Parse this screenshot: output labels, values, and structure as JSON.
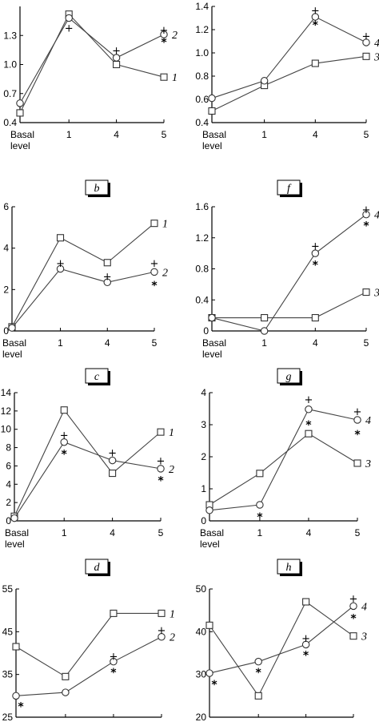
{
  "x_tick_labels": [
    "Basal\nlevel",
    "1",
    "4",
    "5"
  ],
  "x_tick_labels_lines": [
    [
      "Basal",
      "level"
    ],
    [
      "1"
    ],
    [
      "4"
    ],
    [
      "5"
    ]
  ],
  "panel_labels": {
    "b": "b",
    "f": "f",
    "c": "c",
    "g": "g",
    "d": "d",
    "h": "h"
  },
  "chart_data": [
    {
      "type": "line",
      "ylim": [
        0.4,
        1.6
      ],
      "yticks": [
        "0.4",
        "0.7",
        "1.0",
        "1.3"
      ],
      "show_x_labels": true,
      "series": [
        {
          "name": "1",
          "marker": "square",
          "values": [
            0.5,
            1.52,
            1.0,
            0.87
          ]
        },
        {
          "name": "2",
          "marker": "circle",
          "values": [
            0.6,
            1.48,
            1.07,
            1.31
          ]
        }
      ],
      "annotations": [
        {
          "text": "+",
          "x": 1,
          "y": 1.38
        },
        {
          "text": "+",
          "x": 2,
          "y": 1.15
        },
        {
          "text": "+",
          "x": 3,
          "y": 1.36
        },
        {
          "text": "*",
          "x": 3,
          "y": 1.23
        }
      ]
    },
    {
      "type": "line",
      "ylim": [
        0.4,
        1.4
      ],
      "yticks": [
        "0.4",
        "0.6",
        "0.8",
        "1.0",
        "1.2",
        "1.4"
      ],
      "show_x_labels": true,
      "series": [
        {
          "name": "3",
          "marker": "square",
          "values": [
            0.5,
            0.72,
            0.91,
            0.97
          ]
        },
        {
          "name": "4",
          "marker": "circle",
          "values": [
            0.61,
            0.76,
            1.31,
            1.09
          ]
        }
      ],
      "annotations": [
        {
          "text": "+",
          "x": 2,
          "y": 1.37
        },
        {
          "text": "*",
          "x": 2,
          "y": 1.24
        },
        {
          "text": "+",
          "x": 3,
          "y": 1.15
        }
      ]
    },
    {
      "type": "line",
      "ylim": [
        0,
        6
      ],
      "yticks": [
        "0",
        "2",
        "4",
        "6"
      ],
      "show_x_labels": true,
      "series": [
        {
          "name": "1",
          "marker": "square",
          "values": [
            0.2,
            4.5,
            3.3,
            5.2
          ]
        },
        {
          "name": "2",
          "marker": "circle",
          "values": [
            0.15,
            3.0,
            2.35,
            2.85
          ]
        }
      ],
      "annotations": [
        {
          "text": "+",
          "x": 1,
          "y": 3.3
        },
        {
          "text": "+",
          "x": 2,
          "y": 2.65
        },
        {
          "text": "+",
          "x": 3,
          "y": 3.3
        },
        {
          "text": "*",
          "x": 3,
          "y": 2.2
        }
      ]
    },
    {
      "type": "line",
      "ylim": [
        0,
        1.6
      ],
      "yticks": [
        "0",
        "0.4",
        "0.8",
        "1.2",
        "1.6"
      ],
      "show_x_labels": true,
      "series": [
        {
          "name": "3",
          "marker": "square",
          "values": [
            0.17,
            0.17,
            0.17,
            0.5
          ]
        },
        {
          "name": "4",
          "marker": "circle",
          "values": [
            0.17,
            0.0,
            1.0,
            1.5
          ]
        }
      ],
      "annotations": [
        {
          "text": "+",
          "x": 2,
          "y": 1.1
        },
        {
          "text": "*",
          "x": 2,
          "y": 0.85
        },
        {
          "text": "+",
          "x": 3,
          "y": 1.57
        },
        {
          "text": "*",
          "x": 3,
          "y": 1.36
        }
      ]
    },
    {
      "type": "line",
      "ylim": [
        0,
        14
      ],
      "yticks": [
        "0",
        "2",
        "4",
        "6",
        "8",
        "10",
        "12",
        "14"
      ],
      "show_x_labels": true,
      "series": [
        {
          "name": "1",
          "marker": "square",
          "values": [
            0.5,
            12.1,
            5.2,
            9.7
          ]
        },
        {
          "name": "2",
          "marker": "circle",
          "values": [
            0.3,
            8.6,
            6.6,
            5.7
          ]
        }
      ],
      "annotations": [
        {
          "text": "+",
          "x": 1,
          "y": 9.4
        },
        {
          "text": "*",
          "x": 1,
          "y": 7.3
        },
        {
          "text": "+",
          "x": 2,
          "y": 7.5
        },
        {
          "text": "+",
          "x": 3,
          "y": 6.6
        },
        {
          "text": "*",
          "x": 3,
          "y": 4.4
        }
      ]
    },
    {
      "type": "line",
      "ylim": [
        0,
        4
      ],
      "yticks": [
        "0",
        "1",
        "2",
        "3",
        "4"
      ],
      "show_x_labels": true,
      "series": [
        {
          "name": "3",
          "marker": "square",
          "values": [
            0.5,
            1.48,
            2.72,
            1.8
          ]
        },
        {
          "name": "4",
          "marker": "circle",
          "values": [
            0.33,
            0.5,
            3.48,
            3.15
          ]
        }
      ],
      "annotations": [
        {
          "text": "*",
          "x": 1,
          "y": 0.12
        },
        {
          "text": "+",
          "x": 2,
          "y": 3.8
        },
        {
          "text": "*",
          "x": 2,
          "y": 3.0
        },
        {
          "text": "+",
          "x": 3,
          "y": 3.42
        },
        {
          "text": "*",
          "x": 3,
          "y": 2.7
        }
      ]
    },
    {
      "type": "line",
      "ylim": [
        25,
        55
      ],
      "yticks": [
        "25",
        "35",
        "45",
        "55"
      ],
      "show_x_labels": false,
      "series": [
        {
          "name": "1",
          "marker": "square",
          "values": [
            41.5,
            34.5,
            49.3,
            49.3
          ]
        },
        {
          "name": "2",
          "marker": "circle",
          "values": [
            30.0,
            30.8,
            38.0,
            43.8
          ]
        }
      ],
      "annotations": [
        {
          "text": "*",
          "x": 0,
          "y": 27.5
        },
        {
          "text": "+",
          "x": 2,
          "y": 39.3
        },
        {
          "text": "*",
          "x": 2,
          "y": 35.5
        },
        {
          "text": "+",
          "x": 3,
          "y": 45.4
        }
      ]
    },
    {
      "type": "line",
      "ylim": [
        20,
        50
      ],
      "yticks": [
        "20",
        "30",
        "40",
        "50"
      ],
      "show_x_labels": false,
      "series": [
        {
          "name": "3",
          "marker": "square",
          "values": [
            41.5,
            25.0,
            47.0,
            39.0
          ]
        },
        {
          "name": "4",
          "marker": "circle",
          "values": [
            30.3,
            33.0,
            37.0,
            46.0
          ]
        }
      ],
      "annotations": [
        {
          "text": "*",
          "x": 0,
          "y": 27.7
        },
        {
          "text": "*",
          "x": 1,
          "y": 30.5
        },
        {
          "text": "+",
          "x": 2,
          "y": 38.6
        },
        {
          "text": "*",
          "x": 2,
          "y": 34.5
        },
        {
          "text": "+",
          "x": 3,
          "y": 47.8
        },
        {
          "text": "*",
          "x": 3,
          "y": 43.2
        }
      ]
    }
  ]
}
